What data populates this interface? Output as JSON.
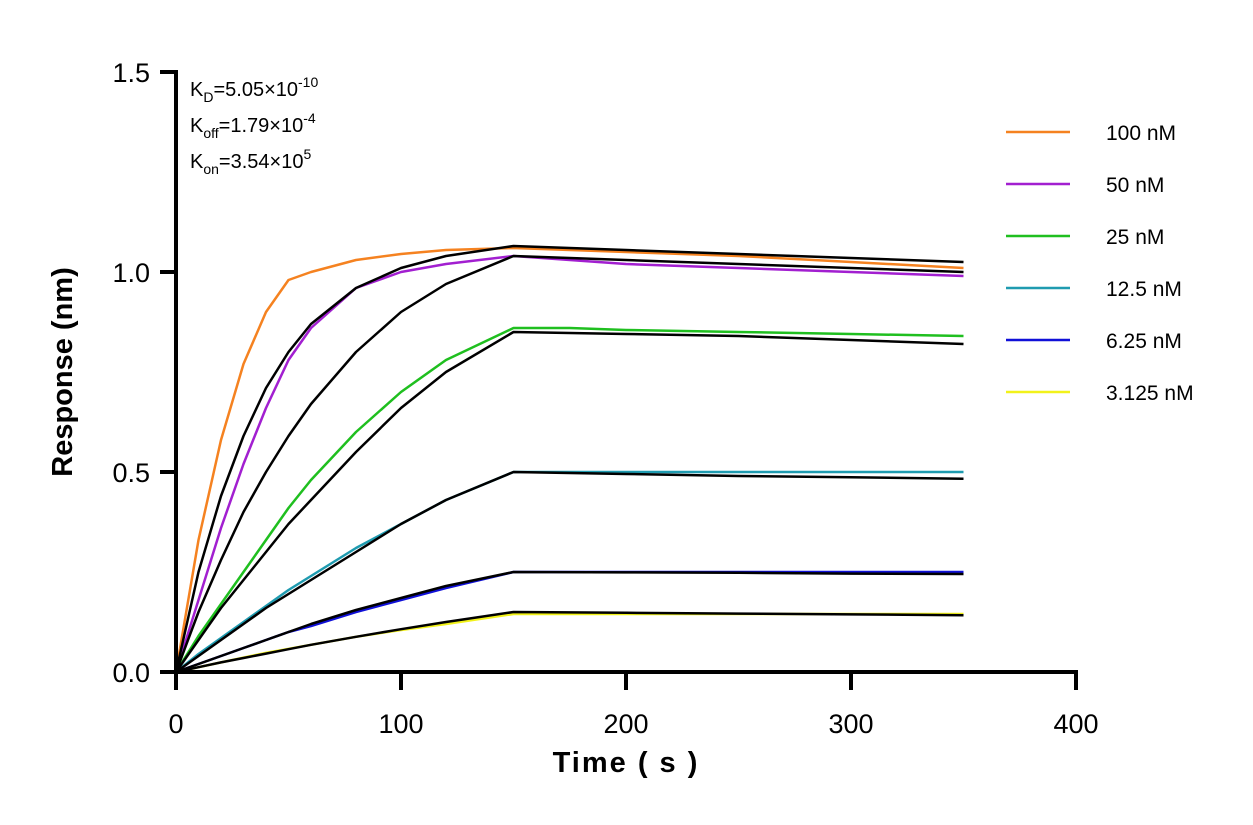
{
  "chart_data": {
    "type": "line",
    "xlabel": "Time ( s )",
    "ylabel": "Response (nm)",
    "xlim": [
      0,
      400
    ],
    "ylim": [
      0,
      1.5
    ],
    "x_ticks": [
      "0",
      "100",
      "200",
      "300",
      "400"
    ],
    "y_ticks": [
      "0.0",
      "0.5",
      "1.0",
      "1.5"
    ],
    "grid": false,
    "legend_placement": "right",
    "annotations": {
      "kd": {
        "base": "K",
        "sub": "D",
        "mid": "=5.05×10",
        "sup": "-10"
      },
      "koff": {
        "base": "K",
        "sub": "off",
        "mid": "=1.79×10",
        "sup": "-4"
      },
      "kon": {
        "base": "K",
        "sub": "on",
        "mid": "=3.54×10",
        "sup": "5"
      }
    },
    "series": [
      {
        "name": "100 nM",
        "color": "#f58220",
        "x": [
          0,
          10,
          20,
          30,
          40,
          50,
          60,
          80,
          100,
          120,
          150,
          175,
          200,
          250,
          300,
          350
        ],
        "y": [
          0,
          0.33,
          0.58,
          0.77,
          0.9,
          0.98,
          1.0,
          1.03,
          1.045,
          1.055,
          1.06,
          1.055,
          1.05,
          1.04,
          1.025,
          1.01
        ]
      },
      {
        "name": "50 nM",
        "color": "#a21fd0",
        "x": [
          0,
          10,
          20,
          30,
          40,
          50,
          60,
          80,
          100,
          120,
          150,
          175,
          200,
          250,
          300,
          350
        ],
        "y": [
          0,
          0.18,
          0.36,
          0.52,
          0.66,
          0.78,
          0.86,
          0.96,
          1.0,
          1.02,
          1.04,
          1.03,
          1.02,
          1.01,
          1.0,
          0.99
        ]
      },
      {
        "name": "25 nM",
        "color": "#1fbf1f",
        "x": [
          0,
          10,
          20,
          30,
          40,
          50,
          60,
          80,
          100,
          120,
          150,
          175,
          200,
          250,
          300,
          350
        ],
        "y": [
          0,
          0.09,
          0.17,
          0.25,
          0.33,
          0.41,
          0.48,
          0.6,
          0.7,
          0.78,
          0.86,
          0.86,
          0.855,
          0.85,
          0.845,
          0.84
        ]
      },
      {
        "name": "12.5 nM",
        "color": "#1f9bb0",
        "x": [
          0,
          10,
          20,
          30,
          40,
          50,
          60,
          80,
          100,
          120,
          150,
          175,
          200,
          250,
          300,
          350
        ],
        "y": [
          0,
          0.045,
          0.085,
          0.125,
          0.165,
          0.205,
          0.24,
          0.31,
          0.37,
          0.43,
          0.5,
          0.5,
          0.5,
          0.5,
          0.5,
          0.5
        ]
      },
      {
        "name": "6.25 nM",
        "color": "#1010d8",
        "x": [
          0,
          10,
          20,
          30,
          40,
          50,
          60,
          80,
          100,
          120,
          150,
          175,
          200,
          250,
          300,
          350
        ],
        "y": [
          0,
          0.02,
          0.04,
          0.06,
          0.08,
          0.1,
          0.115,
          0.15,
          0.18,
          0.21,
          0.25,
          0.25,
          0.25,
          0.25,
          0.25,
          0.25
        ]
      },
      {
        "name": "3.125 nM",
        "color": "#f2f21a",
        "x": [
          0,
          10,
          20,
          30,
          40,
          50,
          60,
          80,
          100,
          120,
          150,
          175,
          200,
          250,
          300,
          350
        ],
        "y": [
          0,
          0.012,
          0.024,
          0.036,
          0.048,
          0.058,
          0.068,
          0.088,
          0.105,
          0.12,
          0.145,
          0.145,
          0.145,
          0.145,
          0.145,
          0.145
        ]
      }
    ],
    "fit_series": [
      {
        "color": "#000000",
        "x": [
          0,
          10,
          20,
          30,
          40,
          50,
          60,
          80,
          100,
          120,
          150,
          200,
          250,
          300,
          350
        ],
        "y": [
          0,
          0.25,
          0.44,
          0.59,
          0.71,
          0.8,
          0.87,
          0.96,
          1.01,
          1.04,
          1.065,
          1.055,
          1.045,
          1.035,
          1.025
        ]
      },
      {
        "color": "#000000",
        "x": [
          0,
          10,
          20,
          30,
          40,
          50,
          60,
          80,
          100,
          120,
          150,
          200,
          250,
          300,
          350
        ],
        "y": [
          0,
          0.15,
          0.28,
          0.4,
          0.5,
          0.59,
          0.67,
          0.8,
          0.9,
          0.97,
          1.04,
          1.03,
          1.02,
          1.01,
          1.0
        ]
      },
      {
        "color": "#000000",
        "x": [
          0,
          10,
          20,
          30,
          40,
          50,
          60,
          80,
          100,
          120,
          150,
          200,
          250,
          300,
          350
        ],
        "y": [
          0,
          0.08,
          0.16,
          0.23,
          0.3,
          0.37,
          0.43,
          0.55,
          0.66,
          0.75,
          0.85,
          0.845,
          0.84,
          0.83,
          0.82
        ]
      },
      {
        "color": "#000000",
        "x": [
          0,
          10,
          20,
          30,
          40,
          50,
          60,
          80,
          100,
          120,
          150,
          200,
          250,
          300,
          350
        ],
        "y": [
          0,
          0.04,
          0.08,
          0.12,
          0.16,
          0.195,
          0.23,
          0.3,
          0.37,
          0.43,
          0.5,
          0.495,
          0.49,
          0.487,
          0.483
        ]
      },
      {
        "color": "#000000",
        "x": [
          0,
          10,
          20,
          30,
          40,
          50,
          60,
          80,
          100,
          120,
          150,
          200,
          250,
          300,
          350
        ],
        "y": [
          0,
          0.02,
          0.04,
          0.06,
          0.08,
          0.1,
          0.12,
          0.155,
          0.185,
          0.215,
          0.25,
          0.249,
          0.248,
          0.246,
          0.245
        ]
      },
      {
        "color": "#000000",
        "x": [
          0,
          10,
          20,
          30,
          40,
          50,
          60,
          80,
          100,
          120,
          150,
          200,
          250,
          300,
          350
        ],
        "y": [
          0,
          0.012,
          0.024,
          0.035,
          0.046,
          0.057,
          0.068,
          0.088,
          0.107,
          0.125,
          0.15,
          0.148,
          0.146,
          0.144,
          0.142
        ]
      }
    ]
  }
}
